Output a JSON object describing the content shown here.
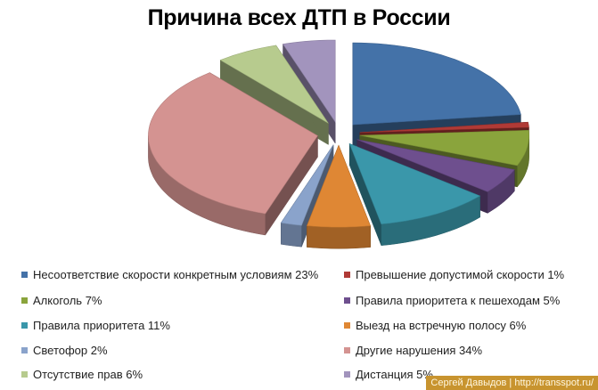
{
  "chart_data": {
    "type": "pie",
    "title": "Причина всех ДТП в России",
    "legend_position": "bottom",
    "slices": [
      {
        "label": "Несоответствие скорости конкретным условиям 23%",
        "value": 23,
        "color": "#4472a8"
      },
      {
        "label": "Превышение допустимой скорости  1%",
        "value": 1,
        "color": "#b03a36"
      },
      {
        "label": "Алкоголь 7%",
        "value": 7,
        "color": "#8aa43c"
      },
      {
        "label": "Правила приоритета к пешеходам 5%",
        "value": 5,
        "color": "#6e4f8e"
      },
      {
        "label": "Правила приоритета 11%",
        "value": 11,
        "color": "#3a97aa"
      },
      {
        "label": "Выезд на встречную полосу 6%",
        "value": 6,
        "color": "#df8734"
      },
      {
        "label": "Светофор 2%",
        "value": 2,
        "color": "#8aa3cb"
      },
      {
        "label": "Другие нарушения 34%",
        "value": 34,
        "color": "#d49391"
      },
      {
        "label": "Отсутствие прав 6%",
        "value": 6,
        "color": "#b7cb8e"
      },
      {
        "label": "Дистанция 5%",
        "value": 5,
        "color": "#a294bd"
      }
    ]
  },
  "watermark": "Сергей Давыдов | http://transspot.ru/"
}
